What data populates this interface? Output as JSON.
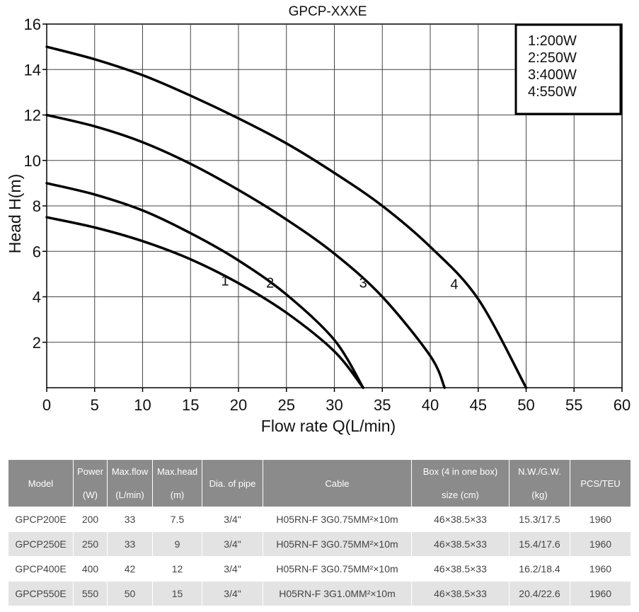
{
  "chart_data": {
    "type": "line",
    "title": "GPCP-XXXE",
    "xlabel": "Flow rate Q(L/min)",
    "ylabel": "Head H(m)",
    "xlim": [
      0,
      60
    ],
    "ylim": [
      0,
      16
    ],
    "xticks": [
      0,
      5,
      10,
      15,
      20,
      25,
      30,
      35,
      40,
      45,
      50,
      55,
      60
    ],
    "yticks": [
      2,
      4,
      6,
      8,
      10,
      12,
      14,
      16
    ],
    "grid": true,
    "legend": {
      "position": "top-right",
      "entries": [
        "1:200W",
        "2:250W",
        "3:400W",
        "4:550W"
      ]
    },
    "series": [
      {
        "label": "1",
        "x": [
          0,
          5,
          10,
          15,
          20,
          25,
          30,
          33
        ],
        "y": [
          7.5,
          7.05,
          6.45,
          5.65,
          4.6,
          3.3,
          1.6,
          0
        ],
        "label_at": [
          18.6,
          4.5
        ]
      },
      {
        "label": "2",
        "x": [
          0,
          5,
          10,
          15,
          20,
          25,
          30,
          33
        ],
        "y": [
          9,
          8.5,
          7.8,
          6.8,
          5.6,
          4.1,
          2.1,
          0
        ],
        "label_at": [
          23.3,
          4.4
        ]
      },
      {
        "label": "3",
        "x": [
          0,
          5,
          10,
          15,
          20,
          25,
          30,
          35,
          40,
          41.5
        ],
        "y": [
          12,
          11.5,
          10.8,
          9.85,
          8.7,
          7.4,
          5.9,
          4.0,
          1.4,
          0
        ],
        "label_at": [
          33,
          4.4
        ]
      },
      {
        "label": "4",
        "x": [
          0,
          5,
          10,
          15,
          20,
          25,
          30,
          35,
          40,
          45,
          50
        ],
        "y": [
          15,
          14.45,
          13.75,
          12.85,
          11.85,
          10.75,
          9.45,
          8.0,
          6.2,
          3.9,
          0
        ],
        "label_at": [
          42.5,
          4.35
        ]
      }
    ]
  },
  "table": {
    "headers": [
      [
        "Model"
      ],
      [
        "Power",
        "(W)"
      ],
      [
        "Max.flow",
        "(L/min)"
      ],
      [
        "Max.head",
        "(m)"
      ],
      [
        "Dia. of pipe"
      ],
      [
        "Cable"
      ],
      [
        "Box (4 in one box)",
        "size (cm)"
      ],
      [
        "N.W./G.W.",
        "(kg)"
      ],
      [
        "PCS/TEU"
      ]
    ],
    "rows": [
      [
        "GPCP200E",
        "200",
        "33",
        "7.5",
        "3/4\"",
        "H05RN-F 3G0.75MM²×10m",
        "46×38.5×33",
        "15.3/17.5",
        "1960"
      ],
      [
        "GPCP250E",
        "250",
        "33",
        "9",
        "3/4\"",
        "H05RN-F 3G0.75MM²×10m",
        "46×38.5×33",
        "15.4/17.6",
        "1960"
      ],
      [
        "GPCP400E",
        "400",
        "42",
        "12",
        "3/4\"",
        "H05RN-F 3G0.75MM²×10m",
        "46×38.5×33",
        "16.2/18.4",
        "1960"
      ],
      [
        "GPCP550E",
        "550",
        "50",
        "15",
        "3/4\"",
        "H05RN-F 3G1.0MM²×10m",
        "46×38.5×33",
        "20.4/22.6",
        "1960"
      ]
    ]
  }
}
